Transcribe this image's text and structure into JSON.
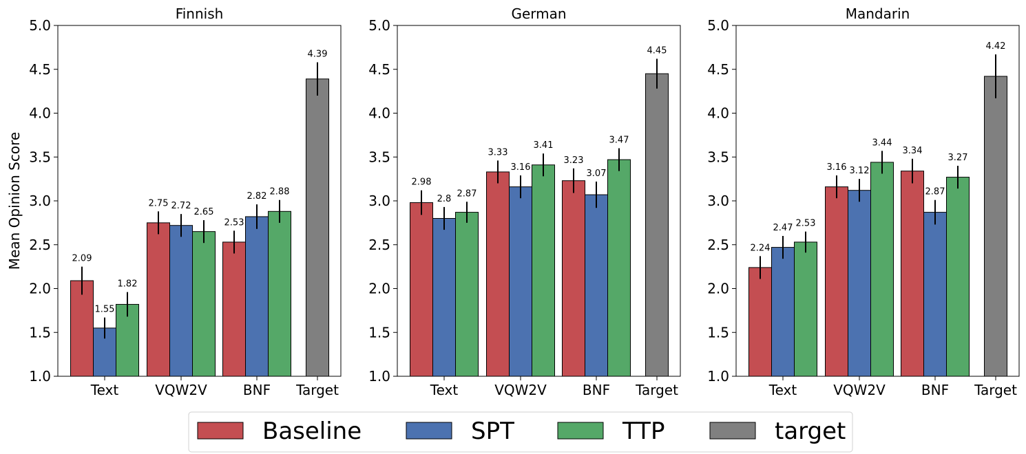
{
  "chart_data": {
    "type": "bar",
    "ylabel": "Mean Opinion Score",
    "ylim": [
      1.0,
      5.0
    ],
    "yticks": [
      "1.0",
      "1.5",
      "2.0",
      "2.5",
      "3.0",
      "3.5",
      "4.0",
      "4.5",
      "5.0"
    ],
    "groups": [
      "Text",
      "VQW2V",
      "BNF",
      "Target"
    ],
    "colors": {
      "Baseline": "#c44e52",
      "SPT": "#4c72b0",
      "TTP": "#55a868",
      "target": "#808080"
    },
    "legend": [
      "Baseline",
      "SPT",
      "TTP",
      "target"
    ],
    "legend_position": "bottom-center",
    "panels": [
      {
        "title": "Finnish",
        "series": [
          {
            "name": "Baseline",
            "values": [
              2.09,
              2.75,
              2.53
            ]
          },
          {
            "name": "SPT",
            "values": [
              1.55,
              2.72,
              2.82
            ]
          },
          {
            "name": "TTP",
            "values": [
              1.82,
              2.65,
              2.88
            ]
          }
        ],
        "errors": [
          [
            0.16,
            0.13,
            0.13
          ],
          [
            0.12,
            0.13,
            0.14
          ],
          [
            0.14,
            0.13,
            0.13
          ]
        ],
        "target": {
          "value": 4.39,
          "error": 0.19
        }
      },
      {
        "title": "German",
        "series": [
          {
            "name": "Baseline",
            "values": [
              2.98,
              3.33,
              3.23
            ]
          },
          {
            "name": "SPT",
            "values": [
              2.8,
              3.16,
              3.07
            ]
          },
          {
            "name": "TTP",
            "values": [
              2.87,
              3.41,
              3.47
            ]
          }
        ],
        "errors": [
          [
            0.14,
            0.13,
            0.14
          ],
          [
            0.13,
            0.13,
            0.15
          ],
          [
            0.12,
            0.13,
            0.13
          ]
        ],
        "target": {
          "value": 4.45,
          "error": 0.17
        }
      },
      {
        "title": "Mandarin",
        "series": [
          {
            "name": "Baseline",
            "values": [
              2.24,
              3.16,
              3.34
            ]
          },
          {
            "name": "SPT",
            "values": [
              2.47,
              3.12,
              2.87
            ]
          },
          {
            "name": "TTP",
            "values": [
              2.53,
              3.44,
              3.27
            ]
          }
        ],
        "errors": [
          [
            0.13,
            0.13,
            0.14
          ],
          [
            0.13,
            0.13,
            0.14
          ],
          [
            0.12,
            0.13,
            0.13
          ]
        ],
        "target": {
          "value": 4.42,
          "error": 0.25
        }
      }
    ]
  }
}
